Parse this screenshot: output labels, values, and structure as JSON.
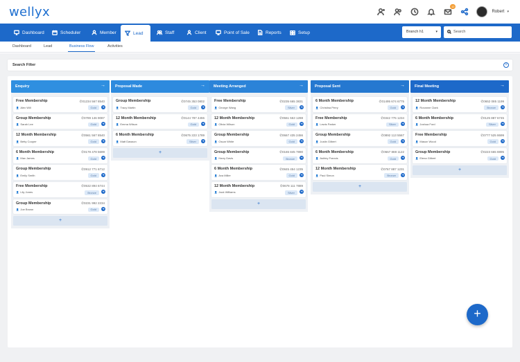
{
  "app": {
    "logo": "wellyx"
  },
  "user": {
    "name": "Robert",
    "notification_count": "12"
  },
  "top_icons": [
    "add-user-icon",
    "users-icon",
    "clock-icon",
    "bell-icon",
    "mail-icon",
    "share-icon"
  ],
  "nav": {
    "items": [
      {
        "label": "Dashboard",
        "icon": "monitor-icon"
      },
      {
        "label": "Scheduler",
        "icon": "calendar-icon"
      },
      {
        "label": "Member",
        "icon": "member-icon"
      },
      {
        "label": "Lead",
        "icon": "funnel-icon"
      },
      {
        "label": "Staff",
        "icon": "staff-icon"
      },
      {
        "label": "Client",
        "icon": "client-icon"
      },
      {
        "label": "Point of Sale",
        "icon": "pos-icon"
      },
      {
        "label": "Reports",
        "icon": "report-icon"
      },
      {
        "label": "Setup",
        "icon": "setup-icon"
      }
    ],
    "active": "Lead",
    "branch_select": "Branch h1",
    "search_placeholder": "Search"
  },
  "subnav": {
    "items": [
      "Dashboard",
      "Lead",
      "Business Flow",
      "Activities"
    ],
    "active": "Business Flow"
  },
  "filter": {
    "label": "Search Filter"
  },
  "columns": [
    {
      "title": "Enquiry",
      "color": "#2f8fe0",
      "cards": [
        {
          "title": "Free Membership",
          "phone": "01234 567 8540",
          "person": "Alex Will",
          "tier": "Gold"
        },
        {
          "title": "Group Membership",
          "phone": "0789 146 9087",
          "person": "Sarah Lee",
          "tier": "Gold"
        },
        {
          "title": "12 Month Membership",
          "phone": "0561 567 8540",
          "person": "Betty Cooper",
          "tier": "Gold"
        },
        {
          "title": "6 Month Membership",
          "phone": "0178 478 5699",
          "person": "Max James",
          "tier": "Gold"
        },
        {
          "title": "Group Membership",
          "phone": "0912 771 6712",
          "person": "Emily Smith",
          "tier": "Gold"
        },
        {
          "title": "Free Membership",
          "phone": "0532 894 6744",
          "person": "Lily Jones",
          "tier": "Bronze"
        },
        {
          "title": "Group Membership",
          "phone": "0231 992 2234",
          "person": "Joe Brown",
          "tier": "Gold"
        }
      ]
    },
    {
      "title": "Proposal Made",
      "color": "#2d8ade",
      "cards": [
        {
          "title": "Group Membership",
          "phone": "0745 353 0802",
          "person": "Tracy Martin",
          "tier": "Gold"
        },
        {
          "title": "12 Month Membership",
          "phone": "0144 787 4455",
          "person": "Emma Wilson",
          "tier": "Gold"
        },
        {
          "title": "6 Month Membership",
          "phone": "0675 223 1789",
          "person": "Matt Dawson",
          "tier": "Silver"
        }
      ]
    },
    {
      "title": "Meeting Arranged",
      "color": "#2b83d8",
      "cards": [
        {
          "title": "Free Membership",
          "phone": "0235 665 3831",
          "person": "George Wang",
          "tier": "Silver"
        },
        {
          "title": "12 Month Membership",
          "phone": "0561 553 1288",
          "person": "Olivia Wilson",
          "tier": "Gold"
        },
        {
          "title": "Group Membership",
          "phone": "0667 435 2456",
          "person": "Oscar White",
          "tier": "Gold"
        },
        {
          "title": "Group Membership",
          "phone": "0165 845 7890",
          "person": "Harry Davis",
          "tier": "Bronze"
        },
        {
          "title": "6 Month Membership",
          "phone": "0845 454 1235",
          "person": "Ava Miller",
          "tier": "Gold"
        },
        {
          "title": "12 Month Membership",
          "phone": "0678 111 7889",
          "person": "Jack Williams",
          "tier": "Silver"
        }
      ]
    },
    {
      "title": "Proposal Sent",
      "color": "#2578d0",
      "cards": [
        {
          "title": "6 Month Membership",
          "phone": "01495 674 6775",
          "person": "Christina Perry",
          "tier": "Gold"
        },
        {
          "title": "Free Membership",
          "phone": "0342 776 1234",
          "person": "Lewis Parker",
          "tier": "Silver"
        },
        {
          "title": "Group Membership",
          "phone": "0892 113 5567",
          "person": "Justin Gilbert",
          "tier": "Gold"
        },
        {
          "title": "6 Month Membership",
          "phone": "0667 888 1122",
          "person": "Ashley Francis",
          "tier": "Gold"
        },
        {
          "title": "12 Month Membership",
          "phone": "0767 887 1231",
          "person": "Paul Simon",
          "tier": "Bronze"
        }
      ]
    },
    {
      "title": "Final Meeting",
      "color": "#1d69c9",
      "cards": [
        {
          "title": "12 Month Membership",
          "phone": "0652 085 1199",
          "person": "Roxanne Clark",
          "tier": "Bronze"
        },
        {
          "title": "6 Month Membership",
          "phone": "0125 887 6745",
          "person": "Joshua Ford",
          "tier": "Silver"
        },
        {
          "title": "Free Membership",
          "phone": "0777 525 8699",
          "person": "Mason Wood",
          "tier": "Gold"
        },
        {
          "title": "Group Membership",
          "phone": "0223 665 8895",
          "person": "Elena Gilbert",
          "tier": "Gold"
        }
      ]
    }
  ],
  "add_symbol": "+",
  "fab_symbol": "+"
}
